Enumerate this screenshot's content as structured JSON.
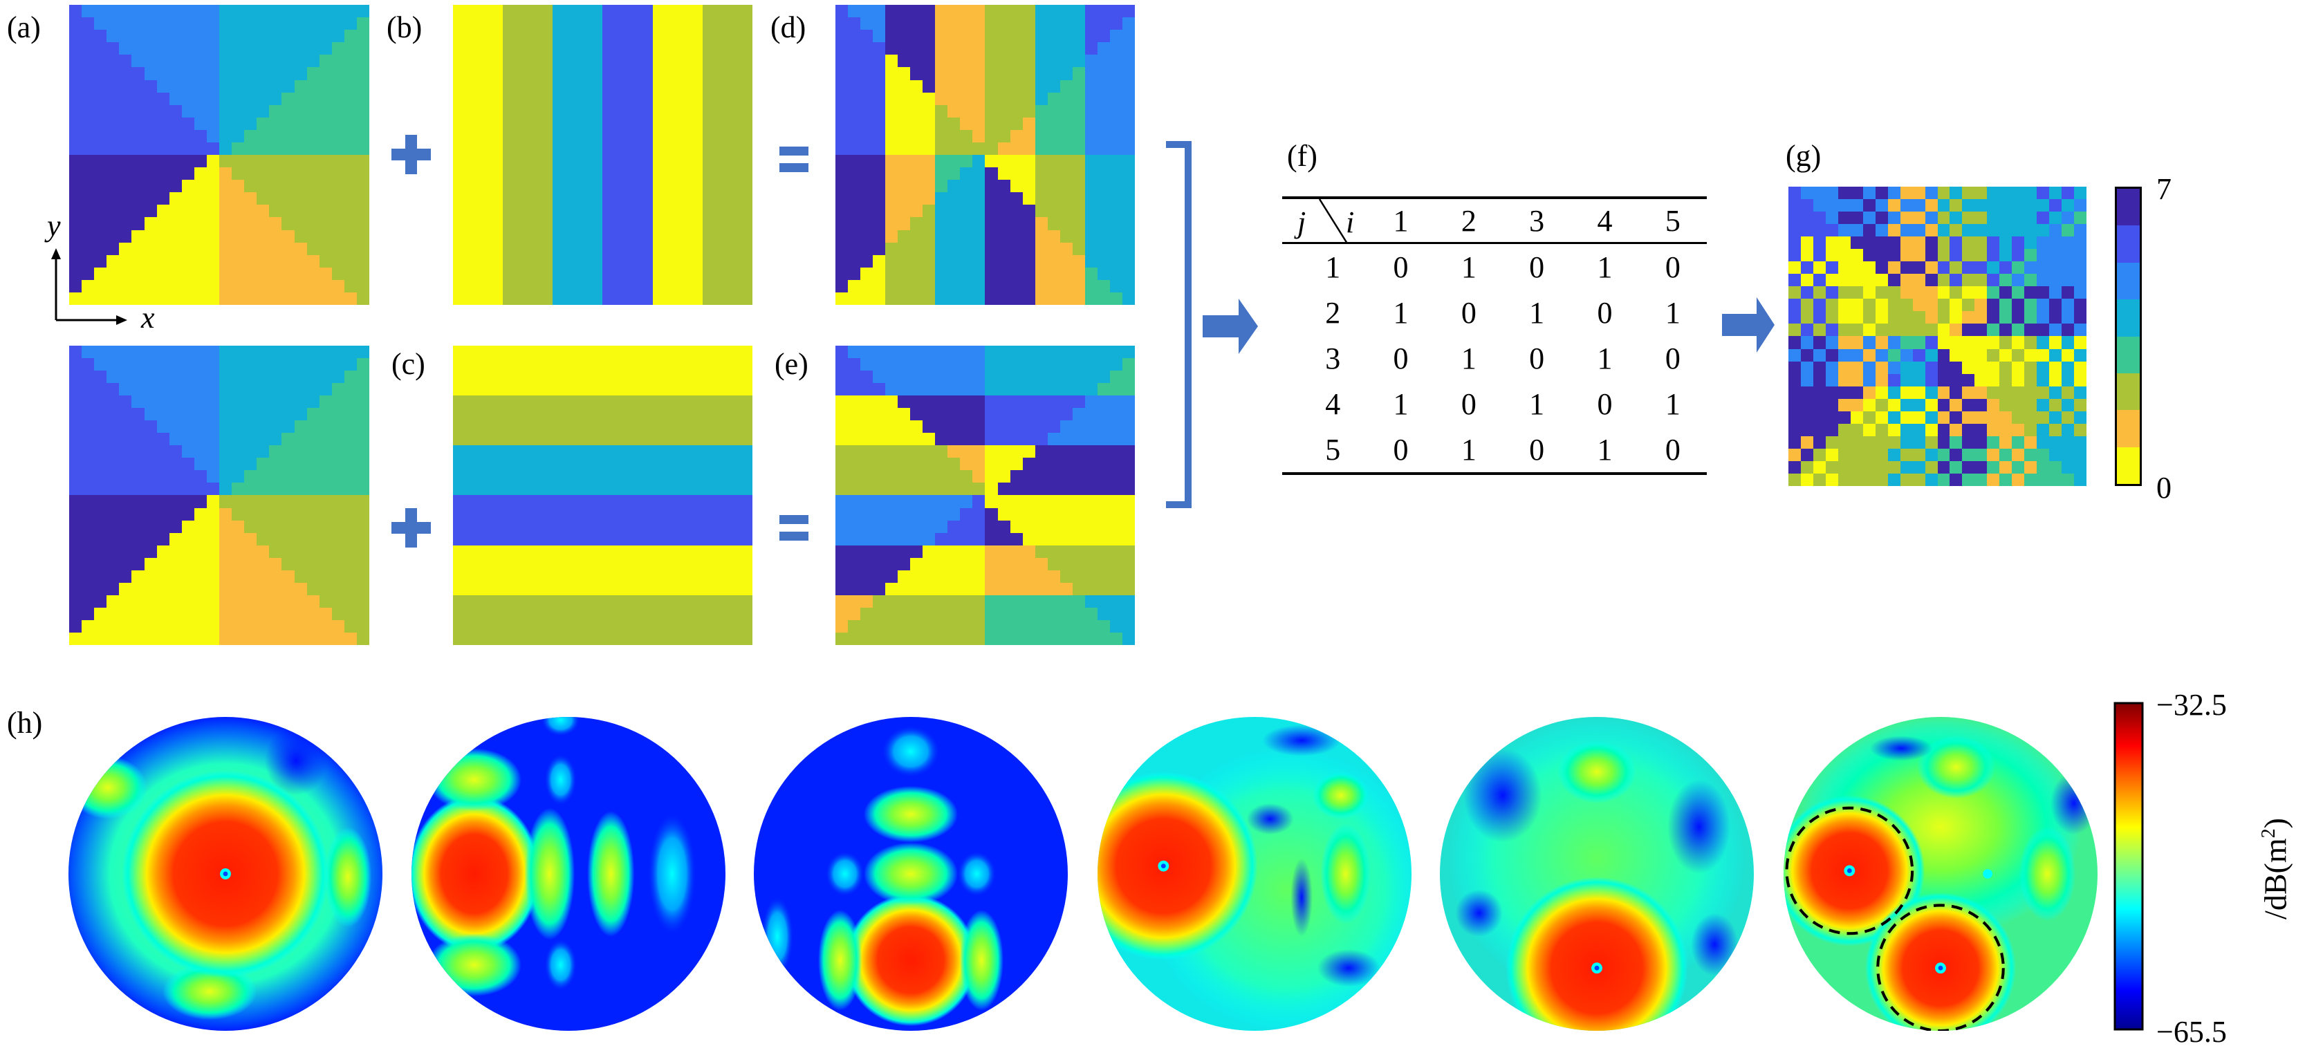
{
  "labels": {
    "a": "(a)",
    "b": "(b)",
    "c": "(c)",
    "d": "(d)",
    "e": "(e)",
    "f": "(f)",
    "g": "(g)",
    "h": "(h)"
  },
  "axes": {
    "x": "x",
    "y": "y"
  },
  "palette": [
    "#f9fb0e",
    "#fbbc3d",
    "#abc437",
    "#3bc794",
    "#12afd6",
    "#2e87f4",
    "#4453ee",
    "#3e26a8"
  ],
  "accent_color": "#4472c4",
  "phase": {
    "grid_size": 24,
    "sectors": 8,
    "column_stripes": [
      0,
      2,
      4,
      6,
      0,
      2
    ],
    "row_stripes": [
      0,
      2,
      4,
      6,
      0,
      2
    ],
    "mixing_rule": "table (f): 0 selects (d), 1 selects (e)"
  },
  "table": {
    "corner_row": "j",
    "corner_col": "i",
    "columns": [
      "1",
      "2",
      "3",
      "4",
      "5"
    ],
    "rows": [
      {
        "j": "1",
        "values": [
          "0",
          "1",
          "0",
          "1",
          "0"
        ]
      },
      {
        "j": "2",
        "values": [
          "1",
          "0",
          "1",
          "0",
          "1"
        ]
      },
      {
        "j": "3",
        "values": [
          "0",
          "1",
          "0",
          "1",
          "0"
        ]
      },
      {
        "j": "4",
        "values": [
          "1",
          "0",
          "1",
          "0",
          "1"
        ]
      },
      {
        "j": "5",
        "values": [
          "0",
          "1",
          "0",
          "1",
          "0"
        ]
      }
    ]
  },
  "phase_colorbar": {
    "max": "7",
    "min": "0"
  },
  "rcs_colorbar": {
    "max": "−32.5",
    "min": "−65.5",
    "unit_prefix": "/dB(m",
    "unit_exp": "2",
    "unit_suffix": ")"
  }
}
